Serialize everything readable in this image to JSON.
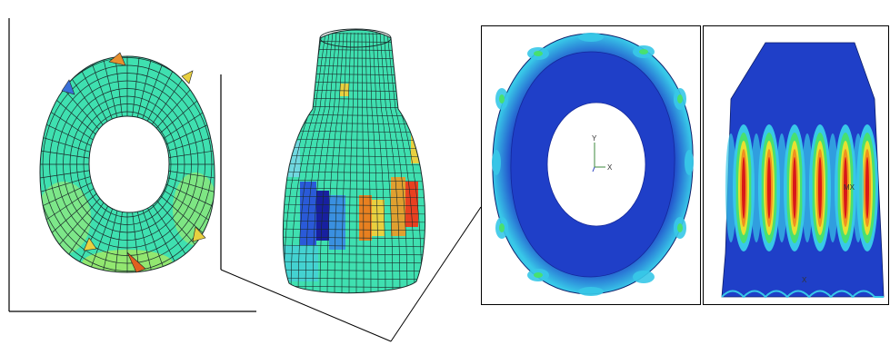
{
  "figure": {
    "panels": [
      {
        "id": "mesh-ring-top-view",
        "kind": "deformed-mesh",
        "view": "top"
      },
      {
        "id": "mesh-shell-side-view",
        "kind": "deformed-mesh",
        "view": "side"
      },
      {
        "id": "contour-ring-top-view",
        "kind": "stress-contour",
        "view": "top"
      },
      {
        "id": "contour-shell-side-view",
        "kind": "stress-contour",
        "view": "side"
      }
    ],
    "triad": {
      "y_label": "Y",
      "x_label": "X"
    },
    "side_marker": "MX",
    "colors": {
      "mesh_fill": "#3fe0b0",
      "mesh_line": "#1a2a2a",
      "contour_blue": "#1f3fc8",
      "contour_cyan": "#38c8e8",
      "contour_green": "#48e070",
      "contour_yellow": "#e8e030",
      "contour_orange": "#f09020",
      "contour_red": "#d81818"
    }
  }
}
